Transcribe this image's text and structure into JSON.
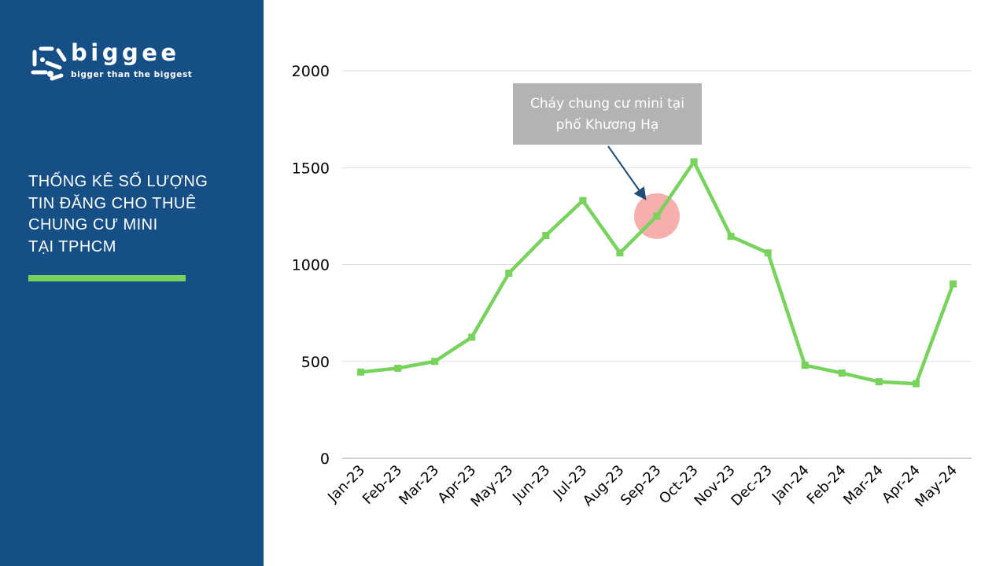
{
  "brand": {
    "name": "biggee",
    "tagline": "bigger than the biggest"
  },
  "sidebar": {
    "title_lines": [
      "THỐNG KÊ SỐ LƯỢNG",
      "TIN ĐĂNG CHO THUÊ",
      "CHUNG CƯ MINI",
      "TẠI TPHCM"
    ]
  },
  "colors": {
    "sidebar_bg": "#154f86",
    "line": "#78d35c",
    "annotation_box": "#b3b3b3",
    "highlight": "#f8a0a0",
    "arrow": "#1f4e79"
  },
  "chart_data": {
    "type": "line",
    "categories": [
      "Jan-23",
      "Feb-23",
      "Mar-23",
      "Apr-23",
      "May-23",
      "Jun-23",
      "Jul-23",
      "Aug-23",
      "Sep-23",
      "Oct-23",
      "Nov-23",
      "Dec-23",
      "Jan-24",
      "Feb-24",
      "Mar-24",
      "Apr-24",
      "May-24"
    ],
    "series": [
      {
        "values": [
          445,
          465,
          500,
          625,
          955,
          1150,
          1330,
          1060,
          1250,
          1530,
          1145,
          1060,
          480,
          440,
          395,
          385,
          900
        ]
      }
    ],
    "ylim": [
      0,
      2000
    ],
    "yticks": [
      0,
      500,
      1000,
      1500,
      2000
    ],
    "grid": true,
    "annotation": {
      "lines": [
        "Cháy chung cư mini tại",
        "phố Khương Hạ"
      ],
      "category": "Sep-23"
    }
  }
}
